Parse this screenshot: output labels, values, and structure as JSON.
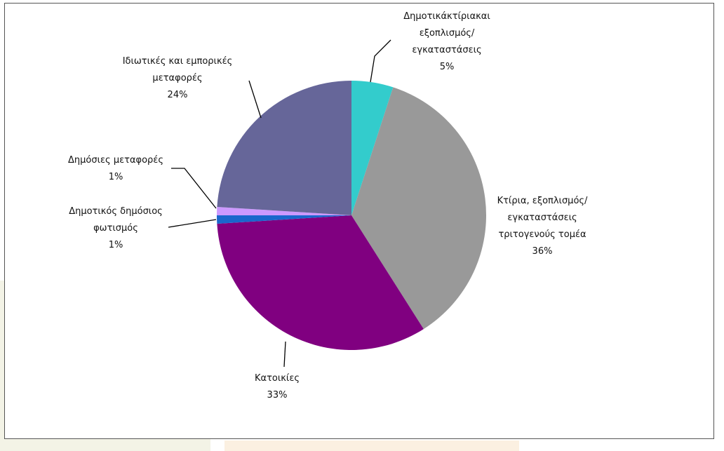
{
  "chart_data": {
    "type": "pie",
    "slices": [
      {
        "label": [
          "Δημοτικάκτίριακαι",
          "εξοπλισμός/",
          "εγκαταστάσεις"
        ],
        "pct_label": "5%",
        "value": 5,
        "color": "#33cccc"
      },
      {
        "label": [
          "Κτίρια, εξοπλισμός/",
          "εγκαταστάσεις",
          "τριτογενούς τομέα"
        ],
        "pct_label": "36%",
        "value": 36,
        "color": "#999999"
      },
      {
        "label": [
          "Κατοικίες"
        ],
        "pct_label": "33%",
        "value": 33,
        "color": "#800080"
      },
      {
        "label": [
          "Δημοτικός δημόσιος",
          "φωτισμός"
        ],
        "pct_label": "1%",
        "value": 1,
        "color": "#1a66cc"
      },
      {
        "label": [
          "Δημόσιες μεταφορές"
        ],
        "pct_label": "1%",
        "value": 1,
        "color": "#cc99ff"
      },
      {
        "label": [
          "Ιδιωτικές και εμπορικές",
          "μεταφορές"
        ],
        "pct_label": "24%",
        "value": 24,
        "color": "#666699"
      }
    ]
  }
}
